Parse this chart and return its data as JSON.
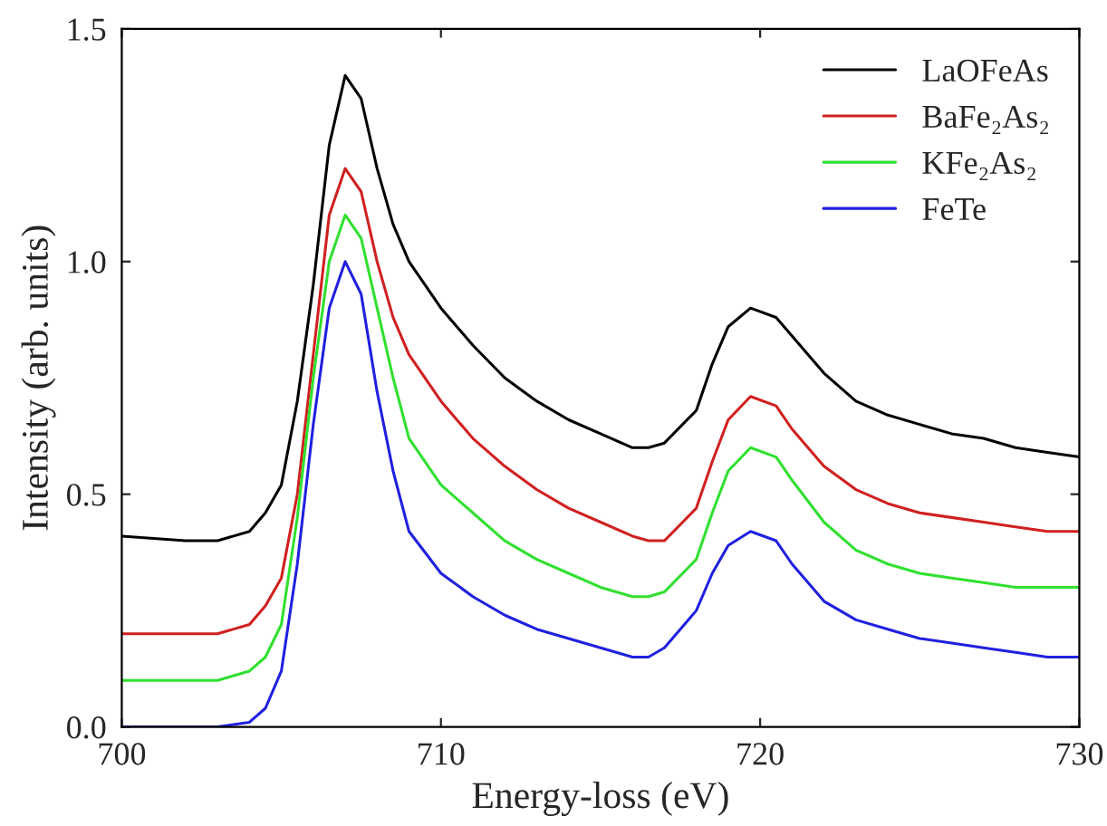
{
  "chart_data": {
    "type": "line",
    "xlabel": "Energy-loss (eV)",
    "ylabel": "Intensity (arb. units)",
    "x": [
      700,
      702,
      703,
      704,
      704.5,
      705,
      705.5,
      706,
      706.5,
      707,
      707.5,
      708,
      708.5,
      709,
      710,
      711,
      712,
      713,
      714,
      715,
      716,
      716.5,
      717,
      718,
      718.5,
      719,
      719.7,
      720.5,
      721,
      722,
      723,
      724,
      725,
      726,
      727,
      728,
      729,
      730
    ],
    "series": [
      {
        "name": "LaOFeAs",
        "color": "#000000",
        "values": [
          0.41,
          0.4,
          0.4,
          0.42,
          0.46,
          0.52,
          0.7,
          0.95,
          1.25,
          1.4,
          1.35,
          1.2,
          1.08,
          1.0,
          0.9,
          0.82,
          0.75,
          0.7,
          0.66,
          0.63,
          0.6,
          0.6,
          0.61,
          0.68,
          0.78,
          0.86,
          0.9,
          0.88,
          0.84,
          0.76,
          0.7,
          0.67,
          0.65,
          0.63,
          0.62,
          0.6,
          0.59,
          0.58
        ]
      },
      {
        "name": "BaFe₂As₂",
        "color": "#d02020",
        "values": [
          0.2,
          0.2,
          0.2,
          0.22,
          0.26,
          0.32,
          0.5,
          0.8,
          1.1,
          1.2,
          1.15,
          1.0,
          0.88,
          0.8,
          0.7,
          0.62,
          0.56,
          0.51,
          0.47,
          0.44,
          0.41,
          0.4,
          0.4,
          0.47,
          0.57,
          0.66,
          0.71,
          0.69,
          0.64,
          0.56,
          0.51,
          0.48,
          0.46,
          0.45,
          0.44,
          0.43,
          0.42,
          0.42
        ]
      },
      {
        "name": "KFe₂As₂",
        "color": "#30e030",
        "values": [
          0.1,
          0.1,
          0.1,
          0.12,
          0.15,
          0.22,
          0.45,
          0.75,
          1.0,
          1.1,
          1.05,
          0.9,
          0.75,
          0.62,
          0.52,
          0.46,
          0.4,
          0.36,
          0.33,
          0.3,
          0.28,
          0.28,
          0.29,
          0.36,
          0.46,
          0.55,
          0.6,
          0.58,
          0.53,
          0.44,
          0.38,
          0.35,
          0.33,
          0.32,
          0.31,
          0.3,
          0.3,
          0.3
        ]
      },
      {
        "name": "FeTe",
        "color": "#2020e0",
        "values": [
          0.0,
          0.0,
          0.0,
          0.01,
          0.04,
          0.12,
          0.35,
          0.65,
          0.9,
          1.0,
          0.93,
          0.72,
          0.55,
          0.42,
          0.33,
          0.28,
          0.24,
          0.21,
          0.19,
          0.17,
          0.15,
          0.15,
          0.17,
          0.25,
          0.33,
          0.39,
          0.42,
          0.4,
          0.35,
          0.27,
          0.23,
          0.21,
          0.19,
          0.18,
          0.17,
          0.16,
          0.15,
          0.15
        ]
      }
    ],
    "xlim": [
      700,
      730
    ],
    "xticks": [
      700,
      710,
      720,
      730
    ],
    "ylim": [
      0,
      1.5
    ],
    "yticks": [
      {
        "value": 0,
        "label": "0.0"
      },
      0.5,
      {
        "value": 1,
        "label": "1.0"
      },
      1.5
    ],
    "grid": false,
    "legend": "top right"
  }
}
